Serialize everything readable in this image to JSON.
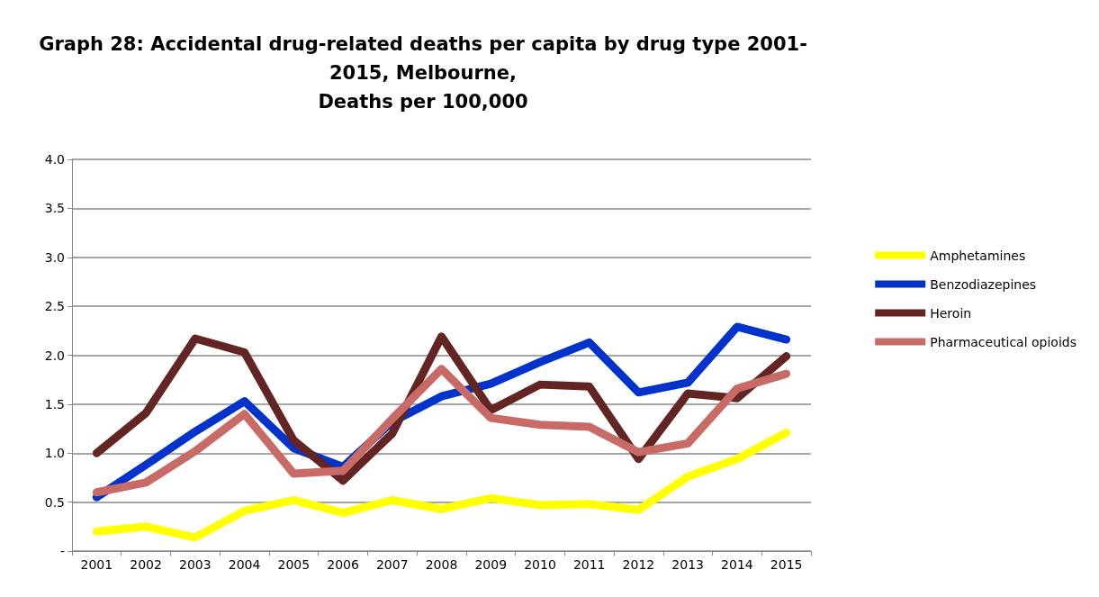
{
  "chart_data": {
    "type": "line",
    "title": "Graph 28: Accidental drug-related deaths per capita by drug type 2001-\n2015, Melbourne,\nDeaths per 100,000",
    "categories": [
      "2001",
      "2002",
      "2003",
      "2004",
      "2005",
      "2006",
      "2007",
      "2008",
      "2009",
      "2010",
      "2011",
      "2012",
      "2013",
      "2014",
      "2015"
    ],
    "series": [
      {
        "name": "Amphetamines",
        "color": "#ffff00",
        "values": [
          0.2,
          0.25,
          0.14,
          0.41,
          0.52,
          0.39,
          0.52,
          0.43,
          0.54,
          0.47,
          0.48,
          0.42,
          0.76,
          0.94,
          1.21
        ]
      },
      {
        "name": "Benzodiazepines",
        "color": "#0033cc",
        "values": [
          0.55,
          0.88,
          1.22,
          1.53,
          1.05,
          0.86,
          1.32,
          1.58,
          1.71,
          1.93,
          2.13,
          1.62,
          1.72,
          2.29,
          2.16
        ]
      },
      {
        "name": "Heroin",
        "color": "#632523",
        "values": [
          1.0,
          1.41,
          2.17,
          2.03,
          1.13,
          0.72,
          1.2,
          2.19,
          1.44,
          1.7,
          1.68,
          0.94,
          1.61,
          1.56,
          1.99
        ]
      },
      {
        "name": "Pharmaceutical opioids",
        "color": "#c86a66",
        "values": [
          0.6,
          0.7,
          1.02,
          1.4,
          0.79,
          0.82,
          1.35,
          1.86,
          1.36,
          1.29,
          1.27,
          1.01,
          1.1,
          1.66,
          1.81
        ]
      }
    ],
    "ylim": [
      0,
      4
    ],
    "yticks": [
      {
        "value": 0,
        "label": "-"
      },
      {
        "value": 0.5,
        "label": "0.5"
      },
      {
        "value": 1,
        "label": "1.0"
      },
      {
        "value": 1.5,
        "label": "1.5"
      },
      {
        "value": 2,
        "label": "2.0"
      },
      {
        "value": 2.5,
        "label": "2.5"
      },
      {
        "value": 3,
        "label": "3.0"
      },
      {
        "value": 3.5,
        "label": "3.5"
      },
      {
        "value": 4,
        "label": "4.0"
      }
    ],
    "grid": "y",
    "legend": "right",
    "marker": "none",
    "line_style": "solid"
  }
}
